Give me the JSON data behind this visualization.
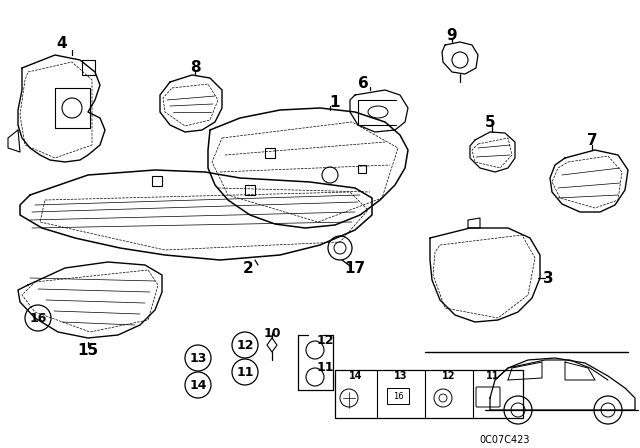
{
  "bg_color": "#ffffff",
  "diagram_code": "0C07C423",
  "line_color": "#000000"
}
